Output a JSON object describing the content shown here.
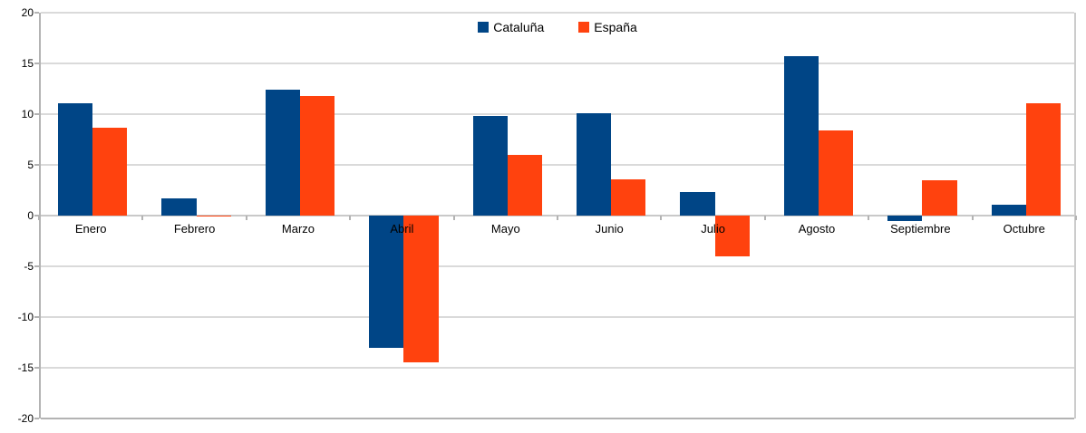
{
  "chart_data": {
    "type": "bar",
    "title": "",
    "xlabel": "",
    "ylabel": "",
    "categories": [
      "Enero",
      "Febrero",
      "Marzo",
      "Abril",
      "Mayo",
      "Junio",
      "Julio",
      "Agosto",
      "Septiembre",
      "Octubre"
    ],
    "series": [
      {
        "name": "Cataluña",
        "color": "#004586",
        "values": [
          11.1,
          1.7,
          12.4,
          -13.0,
          9.8,
          10.1,
          2.3,
          15.7,
          -0.5,
          1.1
        ]
      },
      {
        "name": "España",
        "color": "#FF420E",
        "values": [
          8.7,
          -0.1,
          11.8,
          -14.5,
          6.0,
          3.6,
          -4.0,
          8.4,
          3.5,
          11.1
        ]
      }
    ],
    "ylim": [
      -20,
      20
    ],
    "yticks": [
      20,
      15,
      10,
      5,
      0,
      -5,
      -10,
      -15,
      -20
    ],
    "grid": true,
    "legend_position": "top-center",
    "background": "#ffffff",
    "gridline_color": "#dadada",
    "axis_color": "#b3b3b3",
    "label_color": "#000000"
  }
}
